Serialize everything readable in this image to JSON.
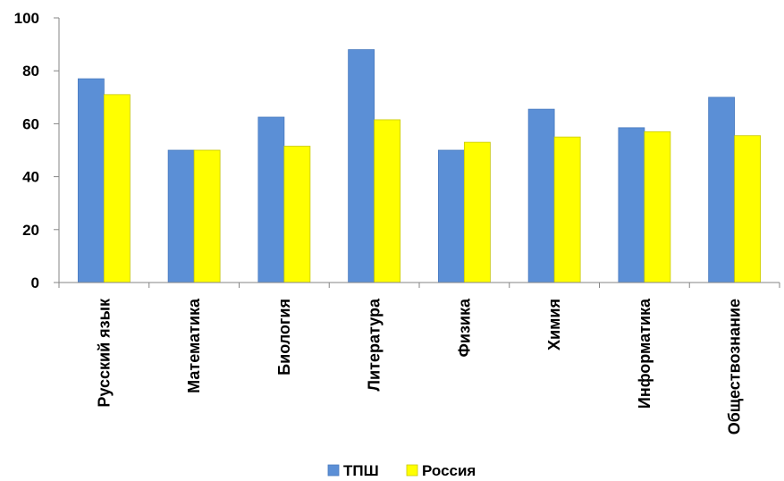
{
  "chart_data": {
    "type": "bar",
    "categories": [
      "Русский язык",
      "Математика",
      "Биология",
      "Литература",
      "Физика",
      "Химия",
      "Информатика",
      "Обществознание"
    ],
    "series": [
      {
        "name": "ТПШ",
        "color": "#5B8FD6",
        "values": [
          77,
          50,
          62.5,
          88,
          50,
          65.5,
          58.5,
          70
        ]
      },
      {
        "name": "Россия",
        "color": "#FFFF00",
        "values": [
          71,
          50,
          51.5,
          61.5,
          53,
          55,
          57,
          55.5
        ]
      }
    ],
    "yticks": [
      0,
      20,
      40,
      60,
      80,
      100
    ],
    "ylim": [
      0,
      100
    ],
    "grid": false,
    "legend_position": "bottom",
    "title": "",
    "xlabel": "",
    "ylabel": ""
  }
}
